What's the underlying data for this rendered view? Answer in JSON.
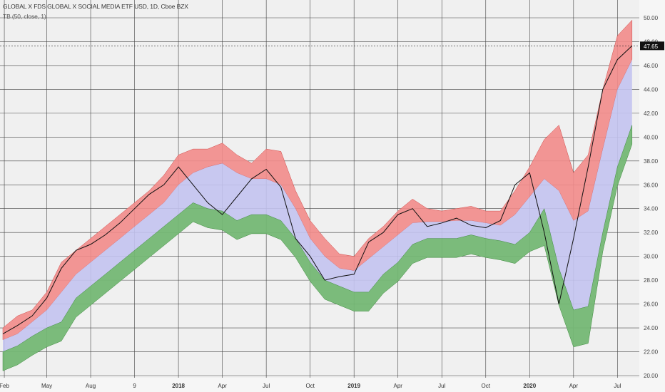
{
  "header": {
    "title": "GLOBAL X FDS GLOBAL X SOCIAL MEDIA ETF USD, 1D, Cboe BZX",
    "indicator": "TB (50, close, 1)"
  },
  "chart_data": {
    "type": "area",
    "ylim": [
      20,
      50
    ],
    "y_ticks": [
      "50.00",
      "48.00",
      "46.00",
      "44.00",
      "42.00",
      "40.00",
      "38.00",
      "36.00",
      "34.00",
      "32.00",
      "30.00",
      "28.00",
      "26.00",
      "24.00",
      "22.00",
      "20.00"
    ],
    "x_ticks": [
      "Feb",
      "May",
      "Aug",
      "9",
      "2018",
      "Apr",
      "Jul",
      "Oct",
      "2019",
      "Apr",
      "Jul",
      "Oct",
      "2020",
      "Apr",
      "Jul"
    ],
    "x_tick_positions": [
      0.1,
      3,
      6,
      9,
      12,
      15,
      18,
      21,
      24,
      27,
      30,
      33,
      36,
      39,
      42
    ],
    "x_range": [
      0,
      43.3
    ],
    "last_price_label": "47.65",
    "last_price": 47.65,
    "colors": {
      "upper_band": "#f28b89",
      "middle_band": "#c3c3f0",
      "lower_band": "#74b774",
      "price_line": "#111111",
      "price_label_bg": "#111111"
    },
    "x": [
      0,
      1,
      2,
      3,
      4,
      5,
      6,
      7,
      8,
      9,
      10,
      11,
      12,
      13,
      14,
      15,
      16,
      17,
      18,
      19,
      20,
      21,
      22,
      23,
      24,
      25,
      26,
      27,
      28,
      29,
      30,
      31,
      32,
      33,
      34,
      35,
      36,
      37,
      38,
      39,
      40,
      41,
      42,
      43
    ],
    "price": [
      23.5,
      24.2,
      25.0,
      26.5,
      29.0,
      30.5,
      31.0,
      31.8,
      32.8,
      34.0,
      35.2,
      36.0,
      37.5,
      36.0,
      34.5,
      33.5,
      35.0,
      36.5,
      37.3,
      35.8,
      31.5,
      30.0,
      28.0,
      28.3,
      28.5,
      31.2,
      32.0,
      33.5,
      34.0,
      32.5,
      32.8,
      33.2,
      32.6,
      32.4,
      33.0,
      36.0,
      37.0,
      32.0,
      26.0,
      31.5,
      37.5,
      44.0,
      46.5,
      47.65
    ],
    "upper": [
      24.0,
      25.0,
      25.5,
      27.0,
      29.5,
      30.5,
      31.5,
      32.5,
      33.5,
      34.5,
      35.5,
      36.8,
      38.5,
      39.0,
      39.0,
      39.5,
      38.5,
      37.8,
      39.0,
      38.8,
      35.5,
      33.0,
      31.5,
      30.2,
      30.0,
      31.5,
      32.5,
      33.8,
      34.8,
      34.0,
      33.8,
      34.0,
      34.2,
      33.8,
      33.8,
      35.5,
      37.5,
      39.8,
      41.0,
      37.0,
      38.5,
      44.0,
      48.5,
      49.8
    ],
    "middle": [
      23.0,
      23.5,
      24.5,
      25.5,
      27.0,
      28.5,
      29.5,
      30.5,
      31.5,
      32.5,
      33.5,
      34.5,
      36.0,
      37.0,
      37.5,
      37.8,
      37.0,
      36.5,
      36.5,
      36.0,
      34.0,
      31.5,
      30.0,
      29.0,
      28.8,
      29.8,
      30.8,
      31.8,
      32.8,
      32.9,
      32.9,
      33.0,
      33.0,
      32.8,
      32.6,
      33.5,
      35.0,
      36.5,
      35.5,
      33.0,
      33.8,
      39.0,
      44.0,
      46.5
    ],
    "lower": [
      22.0,
      22.5,
      23.3,
      24.0,
      24.5,
      26.5,
      27.5,
      28.5,
      29.5,
      30.5,
      31.5,
      32.5,
      33.5,
      34.5,
      34.0,
      33.8,
      33.0,
      33.5,
      33.5,
      33.0,
      31.5,
      29.5,
      28.0,
      27.5,
      27.0,
      27.0,
      28.5,
      29.5,
      31.0,
      31.5,
      31.5,
      31.5,
      31.8,
      31.5,
      31.3,
      31.0,
      32.0,
      34.0,
      29.0,
      25.5,
      25.8,
      32.0,
      37.5,
      41.0
    ]
  }
}
